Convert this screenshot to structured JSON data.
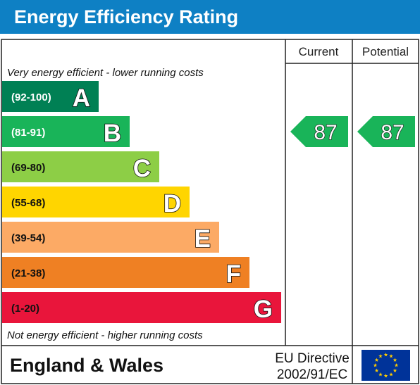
{
  "chart_data": {
    "type": "bar",
    "title": "Energy Efficiency Rating",
    "columns": {
      "current": "Current",
      "potential": "Potential"
    },
    "top_note": "Very energy efficient - lower running costs",
    "bottom_note": "Not energy efficient - higher running costs",
    "bands": [
      {
        "letter": "A",
        "range": "(92-100)",
        "color": "#008054",
        "range_color": "#ffffff"
      },
      {
        "letter": "B",
        "range": "(81-91)",
        "color": "#19b459",
        "range_color": "#ffffff"
      },
      {
        "letter": "C",
        "range": "(69-80)",
        "color": "#8dce46",
        "range_color": "#111111"
      },
      {
        "letter": "D",
        "range": "(55-68)",
        "color": "#ffd500",
        "range_color": "#111111"
      },
      {
        "letter": "E",
        "range": "(39-54)",
        "color": "#fcaa65",
        "range_color": "#111111"
      },
      {
        "letter": "F",
        "range": "(21-38)",
        "color": "#ef8023",
        "range_color": "#111111"
      },
      {
        "letter": "G",
        "range": "(1-20)",
        "color": "#e9153b",
        "range_color": "#111111"
      }
    ],
    "ratings": {
      "current": {
        "value": 87,
        "band": "B",
        "color": "#19b459"
      },
      "potential": {
        "value": 87,
        "band": "B",
        "color": "#19b459"
      }
    },
    "footer": {
      "region": "England & Wales",
      "directive_line1": "EU Directive",
      "directive_line2": "2002/91/EC"
    },
    "header_color": "#0e80c4"
  }
}
